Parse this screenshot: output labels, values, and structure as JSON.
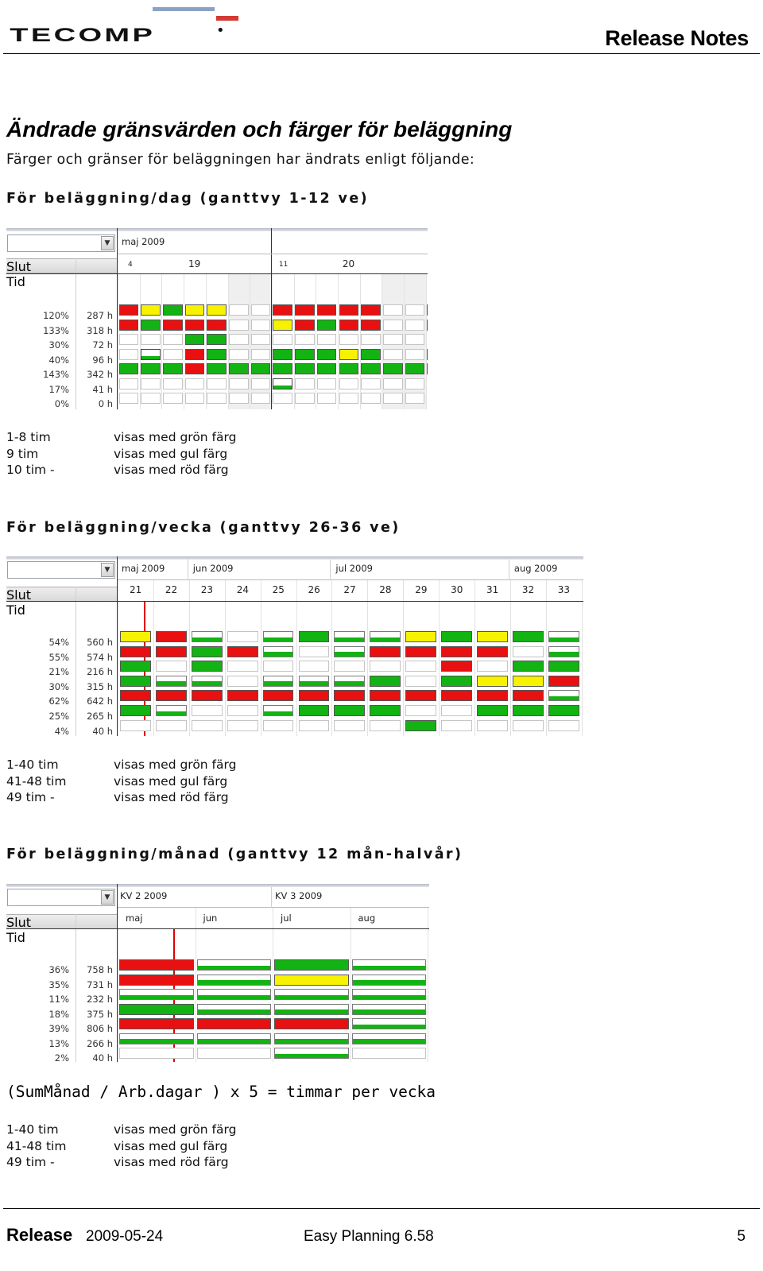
{
  "header": {
    "logo_text": "TECOMP",
    "title": "Release Notes"
  },
  "heading": "Ändrade gränsvärden och färger för beläggning",
  "intro": "Färger och gränser för beläggningen har ändrats enligt följande:",
  "colors": {
    "green": "#12b312",
    "yellow": "#f6f200",
    "red": "#e81010",
    "empty": "#ffffff"
  },
  "sections": [
    {
      "heading": "För beläggning/dag (ganttvy 1-12 ve)",
      "gantt": {
        "col_slut": "Slut",
        "col_tid": "Tid",
        "months": [
          "maj 2009"
        ],
        "weeks": [
          "19",
          "20"
        ],
        "day_labels": [
          "4",
          "11"
        ],
        "rows": [
          {
            "pct": "120%",
            "tid": "287 h",
            "cells": [
              "R",
              "Y",
              "G",
              "Y",
              "Y",
              "",
              "",
              "R",
              "R",
              "R",
              "R",
              "R",
              "",
              ""
            ]
          },
          {
            "pct": "133%",
            "tid": "318 h",
            "cells": [
              "R",
              "G",
              "R",
              "R",
              "R",
              "",
              "",
              "Y",
              "R",
              "G",
              "R",
              "R",
              "",
              ""
            ]
          },
          {
            "pct": "30%",
            "tid": "72 h",
            "cells": [
              "",
              "",
              "",
              "G",
              "G",
              "",
              "",
              "",
              "",
              "",
              "",
              "",
              "",
              ""
            ]
          },
          {
            "pct": "40%",
            "tid": "96 h",
            "cells": [
              "",
              "W",
              "",
              "R",
              "G",
              "",
              "",
              "G",
              "G",
              "G",
              "Y",
              "G",
              "",
              ""
            ]
          },
          {
            "pct": "143%",
            "tid": "342 h",
            "cells": [
              "G",
              "G",
              "G",
              "R",
              "G",
              "G",
              "G",
              "G",
              "G",
              "G",
              "G",
              "G",
              "G",
              "G"
            ]
          },
          {
            "pct": "17%",
            "tid": "41 h",
            "cells": [
              "",
              "",
              "",
              "",
              "",
              "",
              "",
              "W",
              "",
              "",
              "",
              "",
              "",
              ""
            ]
          },
          {
            "pct": "0%",
            "tid": "0 h",
            "cells": [
              "",
              "",
              "",
              "",
              "",
              "",
              "",
              "",
              "",
              "",
              "",
              "",
              "",
              ""
            ]
          }
        ]
      },
      "legend": [
        {
          "range": "1-8 tim",
          "text": "visas med grön färg"
        },
        {
          "range": "9 tim",
          "text": "visas med gul färg"
        },
        {
          "range": "10 tim -",
          "text": "visas med röd färg"
        }
      ]
    },
    {
      "heading": "För beläggning/vecka (ganttvy 26-36 ve)",
      "gantt": {
        "col_slut": "Slut",
        "col_tid": "Tid",
        "months": [
          "maj 2009",
          "jun 2009",
          "jul 2009",
          "aug 2009"
        ],
        "weeks": [
          "21",
          "22",
          "23",
          "24",
          "25",
          "26",
          "27",
          "28",
          "29",
          "30",
          "31",
          "32",
          "33"
        ],
        "rows": [
          {
            "pct": "54%",
            "tid": "560 h",
            "cells": [
              "Y",
              "R",
              "g",
              "",
              "g",
              "G",
              "g",
              "g",
              "Y",
              "G",
              "Y",
              "G",
              "g"
            ]
          },
          {
            "pct": "55%",
            "tid": "574 h",
            "cells": [
              "R",
              "R",
              "G",
              "R",
              "g",
              "",
              "g",
              "R",
              "R",
              "R",
              "R",
              "",
              "g"
            ]
          },
          {
            "pct": "21%",
            "tid": "216 h",
            "cells": [
              "G",
              "",
              "G",
              "",
              "",
              "",
              "",
              "",
              "",
              "R",
              "",
              "G",
              "G"
            ]
          },
          {
            "pct": "30%",
            "tid": "315 h",
            "cells": [
              "G",
              "g",
              "g",
              "",
              "g",
              "g",
              "g",
              "G",
              "",
              "G",
              "Y",
              "Y",
              "R"
            ]
          },
          {
            "pct": "62%",
            "tid": "642 h",
            "cells": [
              "R",
              "R",
              "R",
              "R",
              "R",
              "R",
              "R",
              "R",
              "R",
              "R",
              "R",
              "R",
              "g"
            ]
          },
          {
            "pct": "25%",
            "tid": "265 h",
            "cells": [
              "G",
              "g",
              "",
              "",
              "g",
              "G",
              "G",
              "G",
              "",
              "",
              "G",
              "G",
              "G"
            ]
          },
          {
            "pct": "4%",
            "tid": "40 h",
            "cells": [
              "",
              "",
              "",
              "",
              "",
              "",
              "",
              "",
              "G",
              "",
              "",
              "",
              ""
            ]
          }
        ]
      },
      "legend": [
        {
          "range": "1-40 tim",
          "text": "visas med grön färg"
        },
        {
          "range": "41-48 tim",
          "text": "visas med gul färg"
        },
        {
          "range": "49 tim -",
          "text": "visas med röd färg"
        }
      ]
    },
    {
      "heading": "För beläggning/månad (ganttvy 12 mån-halvår)",
      "gantt": {
        "col_slut": "Slut",
        "col_tid": "Tid",
        "quarters": [
          "KV 2 2009",
          "KV 3 2009"
        ],
        "months": [
          "maj",
          "jun",
          "jul",
          "aug"
        ],
        "rows": [
          {
            "pct": "36%",
            "tid": "758 h",
            "cells": [
              "R",
              "g",
              "G",
              "g"
            ]
          },
          {
            "pct": "35%",
            "tid": "731 h",
            "cells": [
              "R",
              "g",
              "Y",
              "g"
            ]
          },
          {
            "pct": "11%",
            "tid": "232 h",
            "cells": [
              "g",
              "g",
              "g",
              "g"
            ]
          },
          {
            "pct": "18%",
            "tid": "375 h",
            "cells": [
              "G",
              "g",
              "g",
              "g"
            ]
          },
          {
            "pct": "39%",
            "tid": "806 h",
            "cells": [
              "R",
              "R",
              "R",
              "g"
            ]
          },
          {
            "pct": "13%",
            "tid": "266 h",
            "cells": [
              "g",
              "g",
              "g",
              "g"
            ]
          },
          {
            "pct": "2%",
            "tid": "40 h",
            "cells": [
              "",
              "",
              "g",
              ""
            ]
          }
        ]
      },
      "formula": "(SumMånad / Arb.dagar ) x 5 = timmar per vecka",
      "legend": [
        {
          "range": "1-40 tim",
          "text": "visas med grön färg"
        },
        {
          "range": "41-48 tim",
          "text": "visas med gul färg"
        },
        {
          "range": "49 tim -",
          "text": "visas med röd färg"
        }
      ]
    }
  ],
  "footer": {
    "release_label": "Release",
    "date": "2009-05-24",
    "product": "Easy Planning 6.58",
    "page": "5"
  }
}
